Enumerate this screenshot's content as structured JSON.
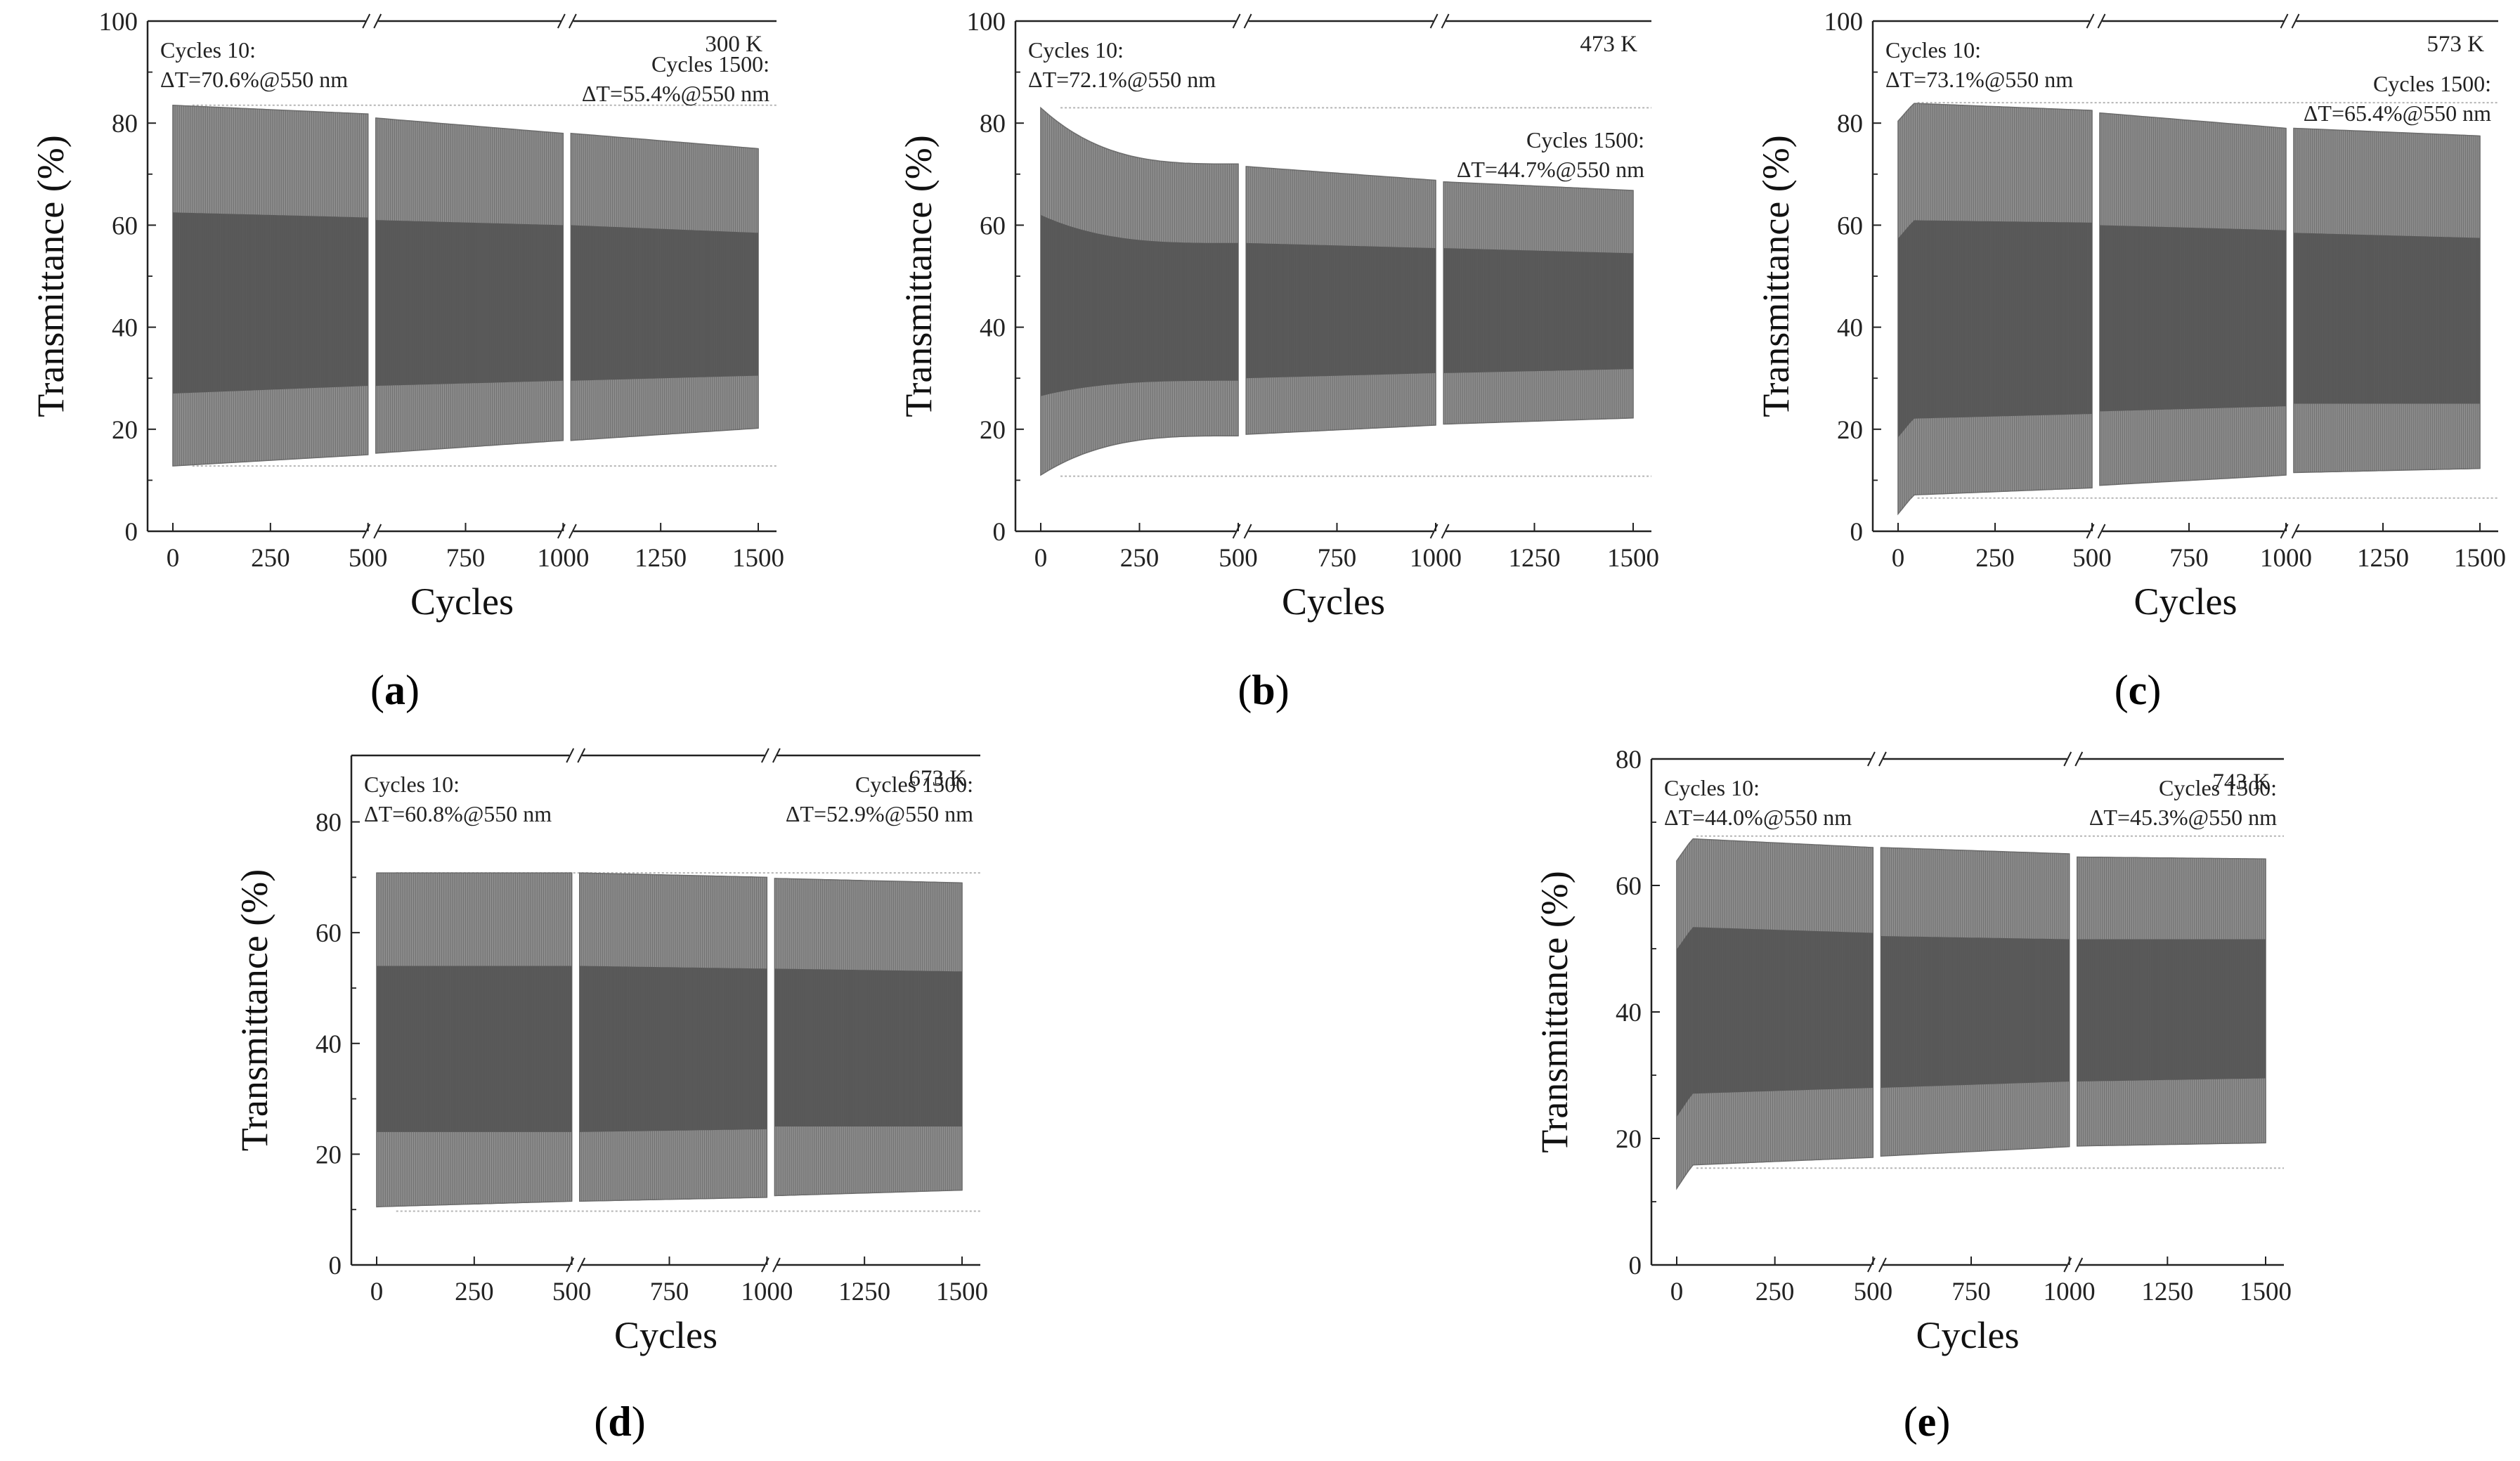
{
  "figure": {
    "x_axis_title": "Cycles",
    "y_axis_title": "Transmittance (%)"
  },
  "chart_data": [
    {
      "type": "area",
      "panel_label": "(a)",
      "panel_letter": "a",
      "temperature": "300 K",
      "xlabel": "Cycles",
      "ylabel": "Transmittance (%)",
      "xlim": [
        0,
        1500
      ],
      "ylim": [
        0,
        100
      ],
      "xticks": [
        0,
        250,
        500,
        750,
        1000,
        1250,
        1500
      ],
      "yticks": [
        0,
        20,
        40,
        60,
        80,
        100
      ],
      "axis_breaks": [
        500,
        1000
      ],
      "annotations": {
        "start_title": "Cycles 10:",
        "start_value": "ΔT=70.6%@550 nm",
        "end_title": "Cycles 1500:",
        "end_value": "ΔT=55.4%@550 nm"
      },
      "reference_lines": [
        83.5,
        12.8
      ],
      "segments": [
        {
          "x": [
            0,
            500
          ],
          "upper": [
            83.5,
            81.8
          ],
          "dark_upper": [
            62.5,
            61.5
          ],
          "dark_lower": [
            27.0,
            28.5
          ],
          "lower": [
            12.8,
            15.0
          ]
        },
        {
          "x": [
            520,
            1000
          ],
          "upper": [
            81.0,
            78.0
          ],
          "dark_upper": [
            61.0,
            60.0
          ],
          "dark_lower": [
            28.5,
            29.5
          ],
          "lower": [
            15.3,
            17.8
          ]
        },
        {
          "x": [
            1020,
            1500
          ],
          "upper": [
            78.0,
            75.0
          ],
          "dark_upper": [
            60.0,
            58.5
          ],
          "dark_lower": [
            29.5,
            30.5
          ],
          "lower": [
            17.8,
            20.2
          ]
        }
      ]
    },
    {
      "type": "area",
      "panel_label": "(b)",
      "panel_letter": "b",
      "temperature": "473 K",
      "xlabel": "Cycles",
      "ylabel": "Transmittance (%)",
      "xlim": [
        0,
        1500
      ],
      "ylim": [
        0,
        100
      ],
      "xticks": [
        0,
        250,
        500,
        750,
        1000,
        1250,
        1500
      ],
      "yticks": [
        0,
        20,
        40,
        60,
        80,
        100
      ],
      "axis_breaks": [
        500,
        1000
      ],
      "annotations": {
        "start_title": "Cycles 10:",
        "start_value": "ΔT=72.1%@550 nm",
        "end_title": "Cycles 1500:",
        "end_value": "ΔT=44.7%@550 nm"
      },
      "reference_lines": [
        83.0,
        10.8
      ],
      "segments": [
        {
          "x": [
            0,
            500
          ],
          "upper": [
            83.0,
            72.0
          ],
          "dark_upper": [
            62.0,
            56.5
          ],
          "dark_lower": [
            26.5,
            29.5
          ],
          "lower": [
            11.0,
            18.7
          ],
          "decay": true
        },
        {
          "x": [
            520,
            1000
          ],
          "upper": [
            71.5,
            68.8
          ],
          "dark_upper": [
            56.5,
            55.5
          ],
          "dark_lower": [
            30.0,
            31.0
          ],
          "lower": [
            19.0,
            20.8
          ]
        },
        {
          "x": [
            1020,
            1500
          ],
          "upper": [
            68.5,
            66.8
          ],
          "dark_upper": [
            55.5,
            54.5
          ],
          "dark_lower": [
            31.0,
            31.8
          ],
          "lower": [
            21.0,
            22.2
          ]
        }
      ]
    },
    {
      "type": "area",
      "panel_label": "(c)",
      "panel_letter": "c",
      "temperature": "573 K",
      "xlabel": "Cycles",
      "ylabel": "Transmittance (%)",
      "xlim": [
        0,
        1500
      ],
      "ylim": [
        0,
        100
      ],
      "xticks": [
        0,
        250,
        500,
        750,
        1000,
        1250,
        1500
      ],
      "yticks": [
        0,
        20,
        40,
        60,
        80,
        100
      ],
      "axis_breaks": [
        500,
        1000
      ],
      "annotations": {
        "start_title": "Cycles 10:",
        "start_value": "ΔT=73.1%@550 nm",
        "end_title": "Cycles 1500:",
        "end_value": "ΔT=65.4%@550 nm"
      },
      "reference_lines": [
        84.0,
        6.5
      ],
      "segments": [
        {
          "x": [
            0,
            500
          ],
          "upper": [
            84.0,
            82.5
          ],
          "dark_upper": [
            61.0,
            60.5
          ],
          "dark_lower": [
            22.0,
            23.0
          ],
          "lower": [
            7.0,
            8.5
          ],
          "rise": true
        },
        {
          "x": [
            520,
            1000
          ],
          "upper": [
            82.0,
            79.0
          ],
          "dark_upper": [
            60.0,
            59.0
          ],
          "dark_lower": [
            23.5,
            24.5
          ],
          "lower": [
            9.0,
            11.0
          ]
        },
        {
          "x": [
            1020,
            1500
          ],
          "upper": [
            79.0,
            77.5
          ],
          "dark_upper": [
            58.5,
            57.5
          ],
          "dark_lower": [
            25.0,
            25.0
          ],
          "lower": [
            11.5,
            12.3
          ]
        }
      ]
    },
    {
      "type": "area",
      "panel_label": "(d)",
      "panel_letter": "d",
      "temperature": "673 K",
      "xlabel": "Cycles",
      "ylabel": "Transmittance (%)",
      "xlim": [
        0,
        1500
      ],
      "ylim": [
        0,
        92
      ],
      "xticks": [
        0,
        250,
        500,
        750,
        1000,
        1250,
        1500
      ],
      "yticks": [
        0,
        20,
        40,
        60,
        80
      ],
      "axis_breaks": [
        500,
        1000
      ],
      "annotations": {
        "start_title": "Cycles 10:",
        "start_value": "ΔT=60.8%@550 nm",
        "end_title": "Cycles 1500:",
        "end_value": "ΔT=52.9%@550 nm"
      },
      "reference_lines": [
        70.8,
        9.7
      ],
      "segments": [
        {
          "x": [
            0,
            500
          ],
          "upper": [
            70.8,
            70.8
          ],
          "dark_upper": [
            54.0,
            54.0
          ],
          "dark_lower": [
            24.0,
            24.0
          ],
          "lower": [
            10.5,
            11.5
          ]
        },
        {
          "x": [
            520,
            1000
          ],
          "upper": [
            70.8,
            70.0
          ],
          "dark_upper": [
            54.0,
            53.5
          ],
          "dark_lower": [
            24.0,
            24.5
          ],
          "lower": [
            11.5,
            12.2
          ]
        },
        {
          "x": [
            1020,
            1500
          ],
          "upper": [
            69.8,
            69.0
          ],
          "dark_upper": [
            53.5,
            53.0
          ],
          "dark_lower": [
            25.0,
            25.0
          ],
          "lower": [
            12.5,
            13.5
          ]
        }
      ]
    },
    {
      "type": "area",
      "panel_label": "(e)",
      "panel_letter": "e",
      "temperature": "743 K",
      "xlabel": "Cycles",
      "ylabel": "Transmittance (%)",
      "xlim": [
        0,
        1500
      ],
      "ylim": [
        0,
        80
      ],
      "xticks": [
        0,
        250,
        500,
        750,
        1000,
        1250,
        1500
      ],
      "yticks": [
        0,
        20,
        40,
        60,
        80
      ],
      "axis_breaks": [
        500,
        1000
      ],
      "annotations": {
        "start_title": "Cycles 10:",
        "start_value": "ΔT=44.0%@550 nm",
        "end_title": "Cycles 1500:",
        "end_value": "ΔT=45.3%@550 nm"
      },
      "reference_lines": [
        67.8,
        15.3
      ],
      "segments": [
        {
          "x": [
            0,
            500
          ],
          "upper": [
            67.5,
            66.0
          ],
          "dark_upper": [
            53.5,
            52.5
          ],
          "dark_lower": [
            27.0,
            28.0
          ],
          "lower": [
            15.7,
            17.0
          ],
          "rise": true
        },
        {
          "x": [
            520,
            1000
          ],
          "upper": [
            66.0,
            65.0
          ],
          "dark_upper": [
            52.0,
            51.5
          ],
          "dark_lower": [
            28.0,
            29.0
          ],
          "lower": [
            17.2,
            18.7
          ]
        },
        {
          "x": [
            1020,
            1500
          ],
          "upper": [
            64.5,
            64.2
          ],
          "dark_upper": [
            51.5,
            51.5
          ],
          "dark_lower": [
            29.0,
            29.5
          ],
          "lower": [
            18.8,
            19.3
          ]
        }
      ]
    }
  ]
}
